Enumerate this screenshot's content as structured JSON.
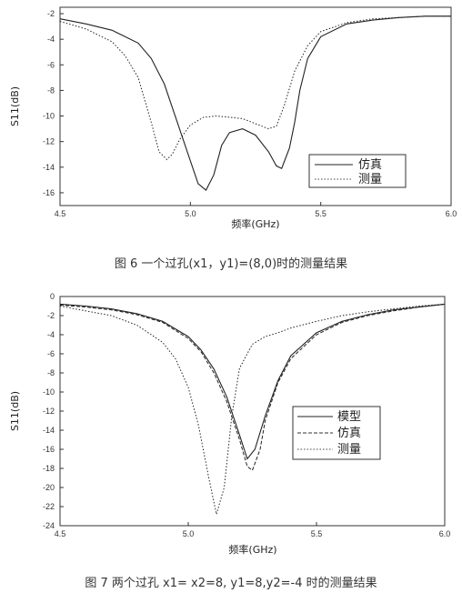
{
  "chart_data": [
    {
      "type": "line",
      "xlabel": "频率(GHz)",
      "ylabel": "S11(dB)",
      "xlim": [
        4.5,
        6.0
      ],
      "ylim": [
        -17,
        -1.5
      ],
      "x_ticks": [
        "4.5",
        "5.0",
        "5.5",
        "6.0"
      ],
      "y_ticks": [
        "-2",
        "-4",
        "-6",
        "-8",
        "-10",
        "-12",
        "-14",
        "-16"
      ],
      "legend_position": "bottom-right",
      "series": [
        {
          "name": "仿真",
          "style": "solid",
          "x": [
            4.5,
            4.6,
            4.7,
            4.8,
            4.85,
            4.9,
            4.95,
            5.0,
            5.03,
            5.06,
            5.09,
            5.12,
            5.15,
            5.2,
            5.25,
            5.3,
            5.33,
            5.35,
            5.38,
            5.4,
            5.42,
            5.45,
            5.5,
            5.6,
            5.7,
            5.8,
            5.9,
            6.0
          ],
          "y": [
            -2.4,
            -2.8,
            -3.3,
            -4.3,
            -5.5,
            -7.5,
            -10.5,
            -13.5,
            -15.3,
            -15.8,
            -14.6,
            -12.3,
            -11.3,
            -11.0,
            -11.5,
            -12.8,
            -13.9,
            -14.1,
            -12.5,
            -10.5,
            -8.0,
            -5.5,
            -3.8,
            -2.8,
            -2.5,
            -2.3,
            -2.2,
            -2.2
          ]
        },
        {
          "name": "测量",
          "style": "dotted",
          "x": [
            4.5,
            4.6,
            4.7,
            4.75,
            4.8,
            4.85,
            4.88,
            4.91,
            4.93,
            4.96,
            5.0,
            5.05,
            5.1,
            5.2,
            5.25,
            5.3,
            5.33,
            5.36,
            5.4,
            5.45,
            5.5,
            5.6,
            5.7,
            5.8,
            5.9,
            6.0
          ],
          "y": [
            -2.6,
            -3.2,
            -4.2,
            -5.3,
            -7.0,
            -10.5,
            -12.8,
            -13.4,
            -13.0,
            -11.8,
            -10.7,
            -10.1,
            -10.0,
            -10.2,
            -10.6,
            -11.0,
            -10.8,
            -9.2,
            -6.5,
            -4.5,
            -3.4,
            -2.7,
            -2.4,
            -2.3,
            -2.2,
            -2.2
          ]
        }
      ],
      "caption": "图 6 一个过孔(x1，y1)=(8,0)时的测量结果"
    },
    {
      "type": "line",
      "xlabel": "频率(GHz)",
      "ylabel": "S11(dB)",
      "xlim": [
        4.5,
        6.0
      ],
      "ylim": [
        -24,
        0
      ],
      "x_ticks": [
        "4.5",
        "5.0",
        "5.5",
        "6.0"
      ],
      "y_ticks": [
        "0",
        "-2",
        "-4",
        "-6",
        "-8",
        "-10",
        "-12",
        "-14",
        "-16",
        "-18",
        "-20",
        "-22",
        "-24"
      ],
      "legend_position": "bottom-right",
      "series": [
        {
          "name": "模型",
          "style": "solid",
          "x": [
            4.5,
            4.6,
            4.7,
            4.8,
            4.9,
            5.0,
            5.05,
            5.1,
            5.15,
            5.2,
            5.23,
            5.26,
            5.3,
            5.35,
            5.4,
            5.5,
            5.6,
            5.7,
            5.8,
            5.9,
            6.0
          ],
          "y": [
            -0.8,
            -1.0,
            -1.3,
            -1.8,
            -2.6,
            -4.2,
            -5.6,
            -7.6,
            -10.5,
            -14.5,
            -17.0,
            -16.0,
            -12.5,
            -8.8,
            -6.2,
            -3.8,
            -2.6,
            -1.9,
            -1.4,
            -1.1,
            -0.8
          ]
        },
        {
          "name": "仿真",
          "style": "dashed",
          "x": [
            4.5,
            4.6,
            4.7,
            4.8,
            4.9,
            5.0,
            5.05,
            5.1,
            5.15,
            5.2,
            5.23,
            5.25,
            5.28,
            5.3,
            5.35,
            5.4,
            5.5,
            5.6,
            5.7,
            5.8,
            5.9,
            6.0
          ],
          "y": [
            -0.9,
            -1.1,
            -1.4,
            -1.9,
            -2.7,
            -4.4,
            -5.8,
            -8.0,
            -11.0,
            -15.0,
            -17.8,
            -18.2,
            -16.0,
            -13.0,
            -9.0,
            -6.5,
            -4.0,
            -2.7,
            -2.0,
            -1.5,
            -1.1,
            -0.8
          ]
        },
        {
          "name": "测量",
          "style": "dotted",
          "x": [
            4.5,
            4.6,
            4.7,
            4.8,
            4.9,
            4.95,
            5.0,
            5.04,
            5.08,
            5.11,
            5.14,
            5.17,
            5.2,
            5.25,
            5.3,
            5.35,
            5.4,
            5.5,
            5.6,
            5.7,
            5.8,
            5.9,
            6.0
          ],
          "y": [
            -1.0,
            -1.5,
            -2.0,
            -3.0,
            -4.8,
            -6.5,
            -9.5,
            -13.5,
            -19.0,
            -22.8,
            -20.0,
            -12.5,
            -7.5,
            -5.0,
            -4.2,
            -3.8,
            -3.3,
            -2.6,
            -2.0,
            -1.6,
            -1.3,
            -1.0,
            -0.8
          ]
        }
      ],
      "caption": "图 7 两个过孔 x1= x2=8, y1=8,y2=-4 时的测量结果"
    }
  ],
  "colors": {
    "axis": "#333333",
    "line": "#222222",
    "background": "#ffffff"
  }
}
